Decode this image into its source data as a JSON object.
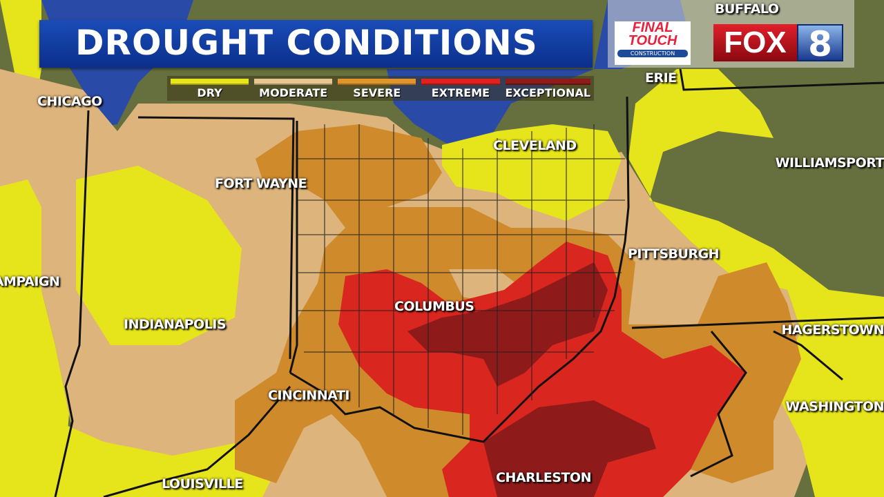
{
  "title": "DROUGHT CONDITIONS",
  "legend": [
    {
      "label": "DRY",
      "color": "#e6e41a"
    },
    {
      "label": "MODERATE",
      "color": "#e9c690"
    },
    {
      "label": "SEVERE",
      "color": "#e0952c"
    },
    {
      "label": "EXTREME",
      "color": "#e0221e"
    },
    {
      "label": "EXCEPTIONAL",
      "color": "#8e1a1a"
    }
  ],
  "sponsor": {
    "line1": "FINAL",
    "line2": "TOUCH",
    "line3": "CONSTRUCTION"
  },
  "station_logo": {
    "text": "FOX",
    "number": "8"
  },
  "cities": {
    "buffalo": "BUFFALO",
    "chicago": "CHICAGO",
    "erie": "ERIE",
    "cleveland": "CLEVELAND",
    "fort_wayne": "FORT WAYNE",
    "champaign": "CHAMPAIGN",
    "williamsport": "WILLIAMSPORT",
    "pittsburgh": "PITTSBURGH",
    "columbus": "COLUMBUS",
    "indianapolis": "INDIANAPOLIS",
    "hagerstown": "HAGERSTOWN",
    "cincinnati": "CINCINNATI",
    "washington": "WASHINGTON",
    "charleston": "CHARLESTON",
    "louisville": "LOUISVILLE"
  }
}
